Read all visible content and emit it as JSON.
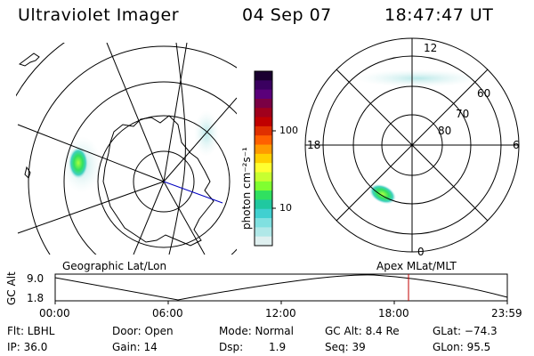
{
  "header": {
    "title": "Ultraviolet Imager",
    "date": "04 Sep 07",
    "time": "18:47:47 UT"
  },
  "left_panel": {
    "projection_label": "Geographic Lat/Lon"
  },
  "right_panel": {
    "projection_label": "Apex MLat/MLT",
    "lat_labels": [
      "60",
      "70",
      "80"
    ],
    "mlt_labels": {
      "top": "12",
      "bottom": "0",
      "left": "18",
      "right": "6"
    }
  },
  "colorbar": {
    "unit_label": "photon cm⁻²s⁻¹",
    "ticks": [
      "100",
      "10"
    ],
    "colors": [
      "#1a0030",
      "#3a0060",
      "#5a007a",
      "#7a0044",
      "#a0001c",
      "#c00000",
      "#e03000",
      "#ff6000",
      "#ff9a00",
      "#ffd000",
      "#ffff30",
      "#c8ff30",
      "#80ff30",
      "#30e060",
      "#20c8a0",
      "#40d0d0",
      "#80e0e0",
      "#b0e8e8",
      "#dff0f0"
    ]
  },
  "timeline": {
    "ylabel": "GC Alt",
    "y_ticks": [
      "9.0",
      "1.8"
    ],
    "x_ticks": [
      "00:00",
      "06:00",
      "12:00",
      "18:00",
      "23:59"
    ],
    "current_marker_time": "18:47",
    "marker_color": "#c00000"
  },
  "status": {
    "filter": "Flt: LBHL",
    "door": "Door: Open",
    "mode": "Mode: Normal",
    "gc_alt": "GC Alt: 8.4 Re",
    "glat": "GLat: −74.3",
    "ip": "IP: 36.0",
    "gain": "Gain: 14",
    "dsp_label": "Dsp:",
    "dsp_value": "1.9",
    "seq": "Seq: 39",
    "glon": "GLon: 95.5"
  }
}
